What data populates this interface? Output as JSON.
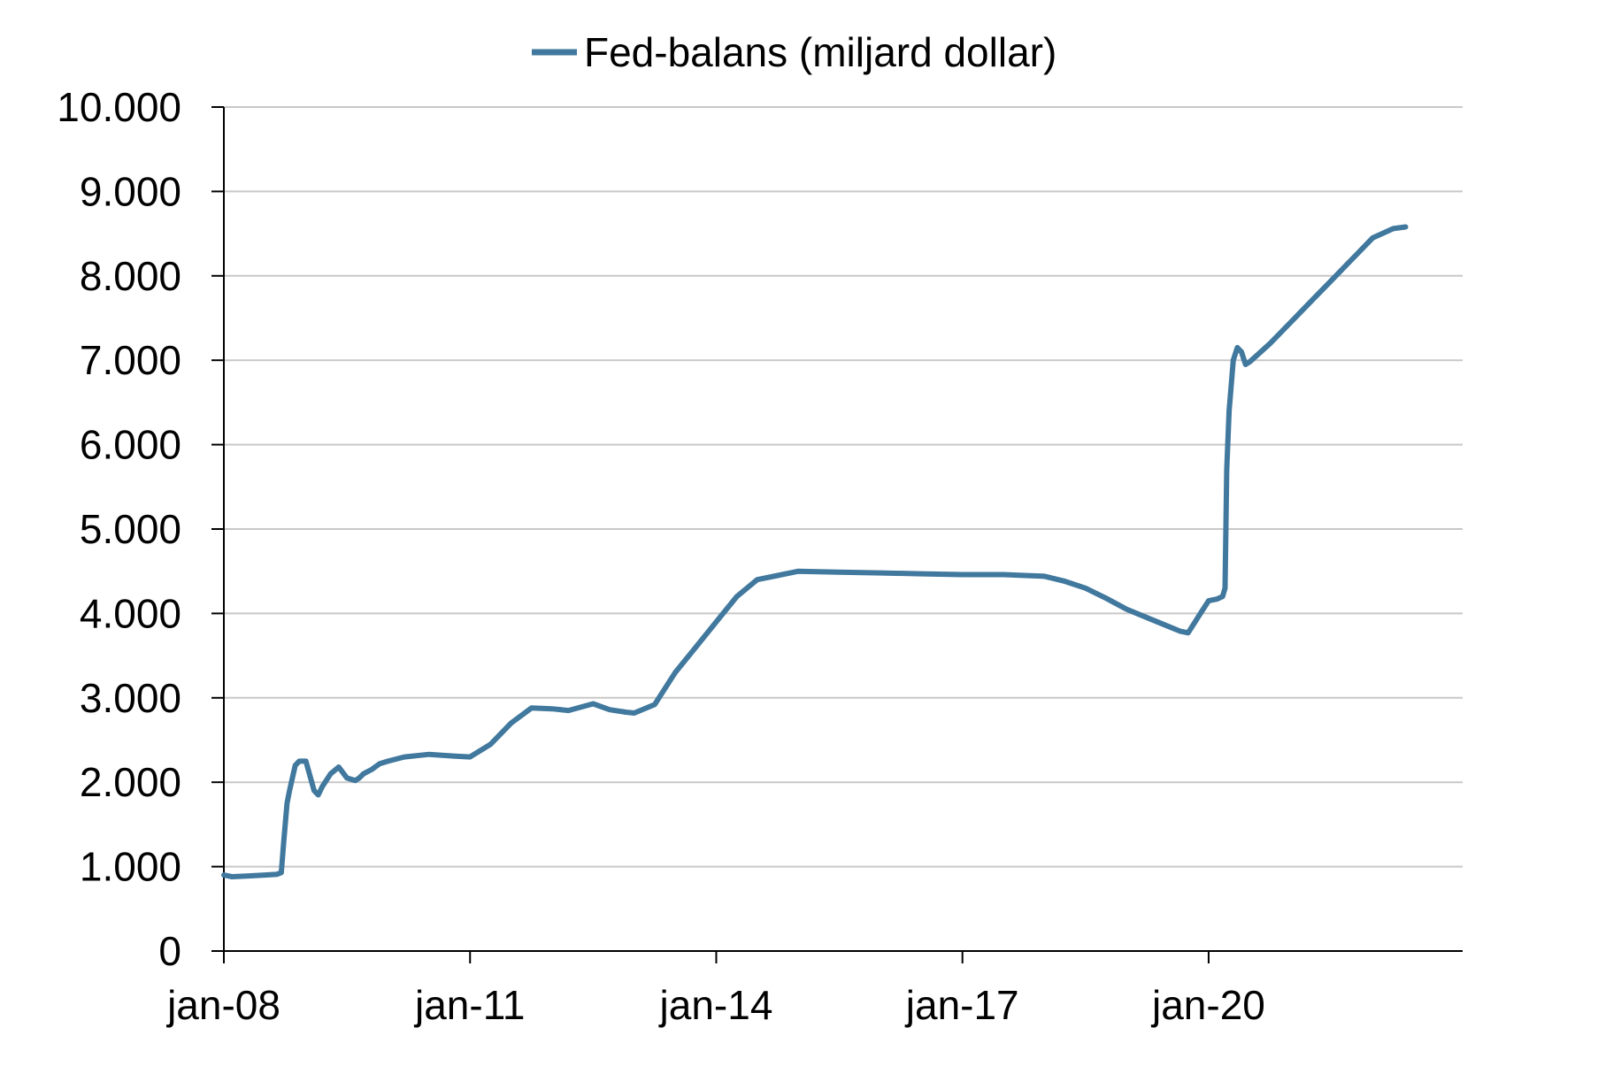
{
  "chart_data": {
    "type": "line",
    "title": "",
    "xlabel": "",
    "ylabel": "",
    "legend": {
      "position": "top-center",
      "entries": [
        "Fed-balans (miljard dollar)"
      ]
    },
    "grid": true,
    "x_ticks": [
      "jan-08",
      "jan-11",
      "jan-14",
      "jan-17",
      "jan-20"
    ],
    "x_tick_years": [
      2008,
      2011,
      2014,
      2017,
      2020
    ],
    "xlim": [
      2008,
      2022.75
    ],
    "y_ticks": [
      "0",
      "1.000",
      "2.000",
      "3.000",
      "4.000",
      "5.000",
      "6.000",
      "7.000",
      "8.000",
      "9.000",
      "10.000"
    ],
    "y_tick_values": [
      0,
      1000,
      2000,
      3000,
      4000,
      5000,
      6000,
      7000,
      8000,
      9000,
      10000
    ],
    "ylim": [
      0,
      10000
    ],
    "series": [
      {
        "name": "Fed-balans (miljard dollar)",
        "color": "#41789e",
        "x": [
          2008.0,
          2008.1,
          2008.3,
          2008.5,
          2008.65,
          2008.7,
          2008.73,
          2008.77,
          2008.8,
          2008.87,
          2008.92,
          2009.0,
          2009.1,
          2009.15,
          2009.2,
          2009.3,
          2009.4,
          2009.5,
          2009.6,
          2009.65,
          2009.7,
          2009.8,
          2009.9,
          2010.0,
          2010.2,
          2010.5,
          2010.8,
          2011.0,
          2011.25,
          2011.5,
          2011.75,
          2012.0,
          2012.2,
          2012.5,
          2012.7,
          2012.9,
          2013.0,
          2013.25,
          2013.5,
          2013.75,
          2014.0,
          2014.25,
          2014.5,
          2014.75,
          2015.0,
          2015.5,
          2016.0,
          2016.5,
          2017.0,
          2017.5,
          2018.0,
          2018.25,
          2018.5,
          2018.75,
          2019.0,
          2019.25,
          2019.5,
          2019.65,
          2019.75,
          2019.9,
          2020.0,
          2020.1,
          2020.17,
          2020.2,
          2020.22,
          2020.25,
          2020.3,
          2020.35,
          2020.4,
          2020.45,
          2020.5,
          2020.75,
          2021.0,
          2021.25,
          2021.5,
          2021.75,
          2022.0,
          2022.25,
          2022.4
        ],
        "values": [
          900,
          880,
          890,
          900,
          910,
          930,
          1300,
          1750,
          1900,
          2200,
          2250,
          2250,
          1900,
          1850,
          1950,
          2100,
          2180,
          2050,
          2020,
          2050,
          2100,
          2150,
          2220,
          2250,
          2300,
          2330,
          2310,
          2300,
          2450,
          2700,
          2880,
          2870,
          2850,
          2930,
          2860,
          2830,
          2820,
          2920,
          3300,
          3600,
          3900,
          4200,
          4400,
          4450,
          4500,
          4490,
          4480,
          4470,
          4460,
          4460,
          4440,
          4380,
          4300,
          4180,
          4050,
          3950,
          3850,
          3790,
          3770,
          4000,
          4150,
          4170,
          4200,
          4300,
          5700,
          6400,
          7000,
          7150,
          7100,
          6950,
          6980,
          7200,
          7450,
          7700,
          7950,
          8200,
          8450,
          8560,
          8580
        ]
      }
    ]
  }
}
